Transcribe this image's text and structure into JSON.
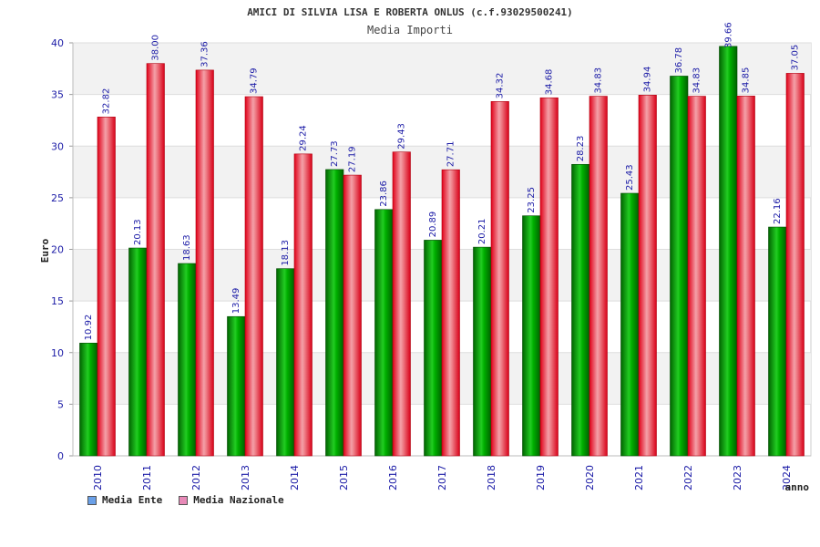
{
  "chart_data": {
    "type": "bar",
    "title": "AMICI DI SILVIA LISA E ROBERTA ONLUS (c.f.93029500241)",
    "subtitle": "Media Importi",
    "ylabel": "Euro",
    "xlabel": "anno",
    "ylim": [
      0,
      40
    ],
    "yticks": [
      "0",
      "5",
      "10",
      "15",
      "20",
      "25",
      "30",
      "35",
      "40"
    ],
    "categories": [
      "2010",
      "2011",
      "2012",
      "2013",
      "2014",
      "2015",
      "2016",
      "2017",
      "2018",
      "2019",
      "2020",
      "2021",
      "2022",
      "2023",
      "2024"
    ],
    "series": [
      {
        "name": "Media Ente",
        "color": "#00a000",
        "legend_color": "#6aa0e8",
        "values": [
          10.92,
          20.13,
          18.63,
          13.49,
          18.13,
          27.73,
          23.86,
          20.89,
          20.21,
          23.25,
          28.23,
          25.43,
          36.78,
          39.66,
          22.16
        ],
        "labels": [
          "10.92",
          "20.13",
          "18.63",
          "13.49",
          "18.13",
          "27.73",
          "23.86",
          "20.89",
          "20.21",
          "23.25",
          "28.23",
          "25.43",
          "36.78",
          "39.66",
          "22.16"
        ]
      },
      {
        "name": "Media Nazionale",
        "color": "#e01020",
        "legend_color": "#e88ab8",
        "values": [
          32.82,
          38.0,
          37.36,
          34.79,
          29.24,
          27.19,
          29.43,
          27.71,
          34.32,
          34.68,
          34.83,
          34.94,
          34.83,
          34.85,
          37.05
        ],
        "labels": [
          "32.82",
          "38.00",
          "37.36",
          "34.79",
          "29.24",
          "27.19",
          "29.43",
          "27.71",
          "34.32",
          "34.68",
          "34.83",
          "34.94",
          "34.83",
          "34.85",
          "37.05"
        ]
      }
    ],
    "grid": true
  },
  "legend": {
    "ente": "Media Ente",
    "nazionale": "Media Nazionale"
  }
}
